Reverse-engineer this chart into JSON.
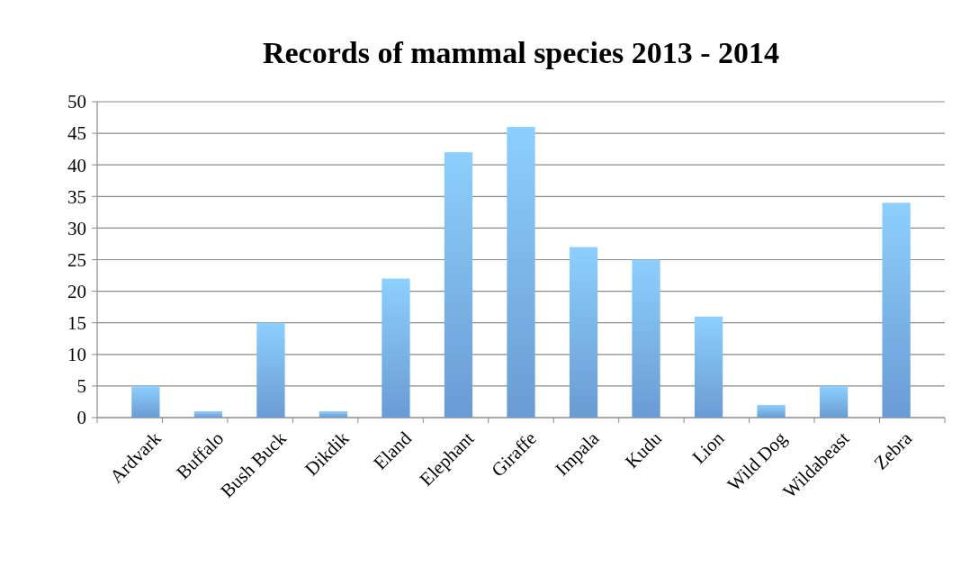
{
  "chart_data": {
    "type": "bar",
    "title": "Records of mammal species 2013 - 2014",
    "categories": [
      "Ardvark",
      "Buffalo",
      "Bush Buck",
      "Dikdik",
      "Eland",
      "Elephant",
      "Giraffe",
      "Impala",
      "Kudu",
      "Lion",
      "Wild Dog",
      "Wildabeast",
      "Zebra"
    ],
    "values": [
      5,
      1,
      15,
      1,
      22,
      42,
      46,
      27,
      25,
      16,
      2,
      5,
      34
    ],
    "color": "#78b0ee",
    "ylim": [
      0,
      50
    ],
    "yticks": [
      0,
      5,
      10,
      15,
      20,
      25,
      30,
      35,
      40,
      45,
      50
    ],
    "grid": "y"
  }
}
